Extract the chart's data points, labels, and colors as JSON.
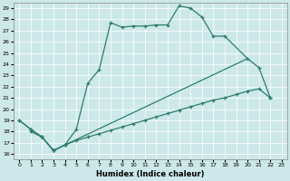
{
  "xlabel": "Humidex (Indice chaleur)",
  "bg_color": "#cde8e8",
  "line_color": "#2d7d6e",
  "xlim": [
    -0.5,
    23.5
  ],
  "ylim": [
    15.5,
    29.5
  ],
  "xticks": [
    0,
    1,
    2,
    3,
    4,
    5,
    6,
    7,
    8,
    9,
    10,
    11,
    12,
    13,
    14,
    15,
    16,
    17,
    18,
    19,
    20,
    21,
    22,
    23
  ],
  "yticks": [
    16,
    17,
    18,
    19,
    20,
    21,
    22,
    23,
    24,
    25,
    26,
    27,
    28,
    29
  ],
  "lineA_x": [
    0,
    1,
    2,
    3,
    4,
    5,
    6,
    7,
    8,
    9,
    10,
    11,
    12,
    13,
    14,
    15,
    16,
    17,
    18
  ],
  "lineA_y": [
    19.0,
    18.2,
    17.5,
    16.3,
    16.8,
    18.2,
    22.3,
    23.5,
    27.7,
    27.3,
    27.4,
    27.4,
    27.5,
    27.5,
    29.2,
    29.0,
    28.2,
    26.5,
    26.5
  ],
  "lineB_x": [
    0,
    1,
    2,
    3,
    4,
    20,
    21,
    22
  ],
  "lineB_y": [
    19.0,
    18.2,
    17.5,
    16.3,
    16.8,
    24.5,
    23.7,
    21.0
  ],
  "lineC_x": [
    1,
    2,
    3,
    4,
    5,
    6,
    7,
    8,
    9,
    10,
    11,
    12,
    13,
    14,
    15,
    16,
    17,
    18,
    19,
    20,
    21,
    22
  ],
  "lineC_y": [
    18.0,
    17.5,
    16.3,
    16.8,
    17.2,
    17.5,
    17.8,
    18.1,
    18.4,
    18.7,
    19.0,
    19.3,
    19.6,
    19.9,
    20.2,
    20.5,
    20.8,
    21.0,
    21.3,
    21.6,
    21.8,
    21.0
  ]
}
